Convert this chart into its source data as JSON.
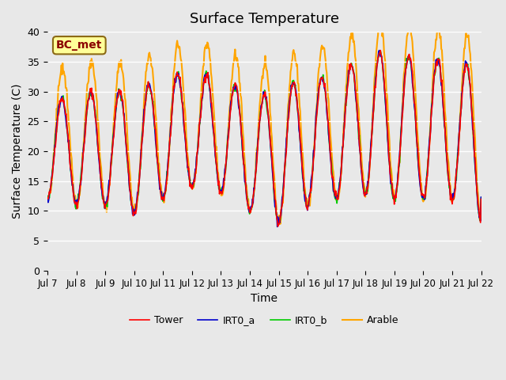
{
  "title": "Surface Temperature",
  "xlabel": "Time",
  "ylabel": "Surface Temperature (C)",
  "ylim": [
    0,
    40
  ],
  "yticks": [
    0,
    5,
    10,
    15,
    20,
    25,
    30,
    35,
    40
  ],
  "background_color": "#e8e8e8",
  "ax_background": "#e8e8e8",
  "grid_color": "white",
  "annotation_text": "BC_met",
  "annotation_color": "#8b0000",
  "annotation_bg": "#ffff99",
  "legend_entries": [
    "Tower",
    "IRT0_a",
    "IRT0_b",
    "Arable"
  ],
  "line_colors": [
    "#ff0000",
    "#0000cc",
    "#00cc00",
    "#ffa500"
  ],
  "x_tick_labels": [
    "Jul 7",
    "Jul 8",
    "Jul 9",
    "Jul 10",
    "Jul 11",
    "Jul 12",
    "Jul 13",
    "Jul 14",
    "Jul 15",
    "Jul 16",
    "Jul 17",
    "Jul 18",
    "Jul 19",
    "Jul 20",
    "Jul 21",
    "Jul 22"
  ],
  "n_days": 15,
  "points_per_day": 48
}
